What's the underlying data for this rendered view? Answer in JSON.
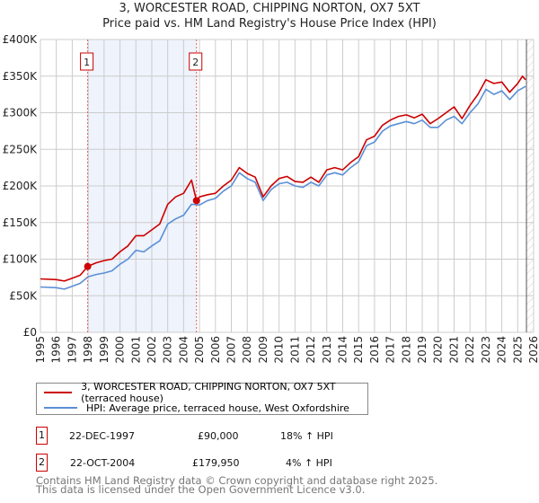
{
  "title": "3, WORCESTER ROAD, CHIPPING NORTON, OX7 5XT",
  "subtitle": "Price paid vs. HM Land Registry's House Price Index (HPI)",
  "chart_data": {
    "type": "line",
    "title": "3, WORCESTER ROAD, CHIPPING NORTON, OX7 5XT — Price paid vs. HM Land Registry's House Price Index (HPI)",
    "xlabel": "",
    "ylabel": "",
    "xlim": [
      1995,
      2026
    ],
    "ylim": [
      0,
      400000
    ],
    "x_ticks": [
      "1995",
      "1996",
      "1997",
      "1998",
      "1999",
      "2000",
      "2001",
      "2002",
      "2003",
      "2004",
      "2005",
      "2006",
      "2007",
      "2008",
      "2009",
      "2010",
      "2011",
      "2012",
      "2013",
      "2014",
      "2015",
      "2016",
      "2017",
      "2018",
      "2019",
      "2020",
      "2021",
      "2022",
      "2023",
      "2024",
      "2025",
      "2026"
    ],
    "y_ticks": [
      {
        "v": 0,
        "label": "£0"
      },
      {
        "v": 50000,
        "label": "£50K"
      },
      {
        "v": 100000,
        "label": "£100K"
      },
      {
        "v": 150000,
        "label": "£150K"
      },
      {
        "v": 200000,
        "label": "£200K"
      },
      {
        "v": 250000,
        "label": "£250K"
      },
      {
        "v": 300000,
        "label": "£300K"
      },
      {
        "v": 350000,
        "label": "£350K"
      },
      {
        "v": 400000,
        "label": "£400K"
      }
    ],
    "grid": true,
    "legend_placement": "below",
    "shaded_range": [
      1997.97,
      2004.81
    ],
    "forecast_hatch_from": 2025.55,
    "series": [
      {
        "name": "3, WORCESTER ROAD, CHIPPING NORTON, OX7 5XT (terraced house)",
        "color": "#cc0000",
        "x": [
          1995,
          1996,
          1996.5,
          1997,
          1997.5,
          1997.97,
          1998.5,
          1999,
          1999.5,
          2000,
          2000.5,
          2001,
          2001.5,
          2002,
          2002.5,
          2003,
          2003.5,
          2004,
          2004.5,
          2004.81,
          2005,
          2005.5,
          2006,
          2006.5,
          2007,
          2007.5,
          2008,
          2008.5,
          2009,
          2009.5,
          2010,
          2010.5,
          2011,
          2011.5,
          2012,
          2012.5,
          2013,
          2013.5,
          2014,
          2014.5,
          2015,
          2015.5,
          2016,
          2016.5,
          2017,
          2017.5,
          2018,
          2018.5,
          2019,
          2019.5,
          2020,
          2020.5,
          2021,
          2021.5,
          2022,
          2022.5,
          2023,
          2023.5,
          2024,
          2024.5,
          2025,
          2025.3,
          2025.5
        ],
        "y": [
          73,
          72,
          70,
          74,
          78,
          90,
          95,
          98,
          100,
          110,
          118,
          132,
          132,
          140,
          148,
          175,
          185,
          190,
          208,
          180,
          185,
          188,
          190,
          200,
          208,
          225,
          217,
          212,
          185,
          200,
          210,
          213,
          206,
          205,
          212,
          205,
          222,
          225,
          222,
          232,
          240,
          263,
          268,
          283,
          290,
          295,
          297,
          293,
          298,
          285,
          292,
          300,
          308,
          292,
          310,
          325,
          345,
          340,
          342,
          328,
          340,
          350,
          345
        ],
        "y_unit": "£K"
      },
      {
        "name": "HPI: Average price, terraced house, West Oxfordshire",
        "color": "#5b8fd6",
        "x": [
          1995,
          1996,
          1996.5,
          1997,
          1997.5,
          1998,
          1998.5,
          1999,
          1999.5,
          2000,
          2000.5,
          2001,
          2001.5,
          2002,
          2002.5,
          2003,
          2003.5,
          2004,
          2004.5,
          2005,
          2005.5,
          2006,
          2006.5,
          2007,
          2007.5,
          2008,
          2008.5,
          2009,
          2009.5,
          2010,
          2010.5,
          2011,
          2011.5,
          2012,
          2012.5,
          2013,
          2013.5,
          2014,
          2014.5,
          2015,
          2015.5,
          2016,
          2016.5,
          2017,
          2017.5,
          2018,
          2018.5,
          2019,
          2019.5,
          2020,
          2020.5,
          2021,
          2021.5,
          2022,
          2022.5,
          2023,
          2023.5,
          2024,
          2024.5,
          2025,
          2025.5
        ],
        "y": [
          62,
          61,
          59,
          63,
          67,
          76,
          79,
          81,
          84,
          93,
          100,
          112,
          110,
          118,
          125,
          148,
          155,
          160,
          175,
          174,
          180,
          183,
          193,
          200,
          218,
          210,
          205,
          180,
          195,
          203,
          205,
          200,
          198,
          205,
          200,
          215,
          218,
          215,
          225,
          233,
          255,
          260,
          275,
          282,
          285,
          288,
          285,
          290,
          280,
          280,
          290,
          295,
          285,
          300,
          312,
          332,
          325,
          330,
          318,
          330,
          336
        ],
        "y_unit": "£K"
      }
    ],
    "annotations": [
      {
        "label": "1",
        "x": 1997.97,
        "y": 90
      },
      {
        "label": "2",
        "x": 2004.81,
        "y": 179.95
      }
    ]
  },
  "legend": {
    "property_label": "3, WORCESTER ROAD, CHIPPING NORTON, OX7 5XT (terraced house)",
    "hpi_label": "HPI: Average price, terraced house, West Oxfordshire"
  },
  "transactions": [
    {
      "num": "1",
      "date": "22-DEC-1997",
      "price": "£90,000",
      "hpi": "18% ↑ HPI"
    },
    {
      "num": "2",
      "date": "22-OCT-2004",
      "price": "£179,950",
      "hpi": "4% ↑ HPI"
    }
  ],
  "footer": {
    "line1": "Contains HM Land Registry data © Crown copyright and database right 2025.",
    "line2": "This data is licensed under the Open Government Licence v3.0."
  }
}
